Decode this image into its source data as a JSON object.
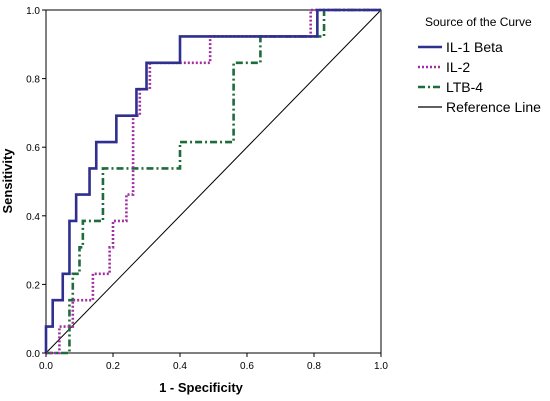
{
  "chart_data": {
    "type": "line",
    "xlabel": "1 - Specificity",
    "ylabel": "Sensitivity",
    "xlim": [
      0,
      1
    ],
    "ylim": [
      0,
      1
    ],
    "xticks": [
      "0.0",
      "0.2",
      "0.4",
      "0.6",
      "0.8",
      "1.0"
    ],
    "yticks": [
      "0.0",
      "0.2",
      "0.4",
      "0.6",
      "0.8",
      "1.0"
    ],
    "grid": false,
    "legend": {
      "title": "Source of the Curve",
      "position": "right"
    },
    "series": [
      {
        "name": "IL-1 Beta",
        "color": "#2f2f8f",
        "style": "solid",
        "x": [
          0,
          0,
          0.02,
          0.02,
          0.05,
          0.05,
          0.07,
          0.07,
          0.09,
          0.09,
          0.13,
          0.13,
          0.15,
          0.15,
          0.21,
          0.21,
          0.27,
          0.27,
          0.3,
          0.3,
          0.32,
          0.32,
          0.4,
          0.4,
          0.81,
          0.81,
          1.0
        ],
        "y": [
          0,
          0.077,
          0.077,
          0.154,
          0.154,
          0.231,
          0.231,
          0.385,
          0.385,
          0.462,
          0.462,
          0.538,
          0.538,
          0.615,
          0.615,
          0.692,
          0.692,
          0.769,
          0.769,
          0.846,
          0.846,
          0.846,
          0.846,
          0.923,
          0.923,
          1.0,
          1.0
        ]
      },
      {
        "name": "IL-2",
        "color": "#a030a0",
        "style": "dotted",
        "x": [
          0,
          0.04,
          0.04,
          0.08,
          0.08,
          0.14,
          0.14,
          0.19,
          0.19,
          0.2,
          0.2,
          0.24,
          0.24,
          0.26,
          0.26,
          0.28,
          0.28,
          0.31,
          0.31,
          0.49,
          0.49,
          0.79,
          0.79,
          1.0
        ],
        "y": [
          0,
          0,
          0.077,
          0.077,
          0.154,
          0.154,
          0.231,
          0.231,
          0.308,
          0.308,
          0.385,
          0.385,
          0.462,
          0.462,
          0.692,
          0.692,
          0.769,
          0.769,
          0.846,
          0.846,
          0.923,
          0.923,
          1.0,
          1.0
        ]
      },
      {
        "name": "LTB-4",
        "color": "#1e6b3c",
        "style": "dash-dot",
        "x": [
          0,
          0.07,
          0.07,
          0.08,
          0.08,
          0.1,
          0.1,
          0.11,
          0.11,
          0.17,
          0.17,
          0.4,
          0.4,
          0.56,
          0.56,
          0.64,
          0.64,
          0.83,
          0.83,
          1.0
        ],
        "y": [
          0,
          0,
          0.154,
          0.154,
          0.231,
          0.231,
          0.308,
          0.308,
          0.385,
          0.385,
          0.538,
          0.538,
          0.615,
          0.615,
          0.846,
          0.846,
          0.923,
          0.923,
          1.0,
          1.0
        ]
      },
      {
        "name": "Reference Line",
        "color": "#000000",
        "style": "solid",
        "x": [
          0,
          1
        ],
        "y": [
          0,
          1
        ]
      }
    ]
  }
}
